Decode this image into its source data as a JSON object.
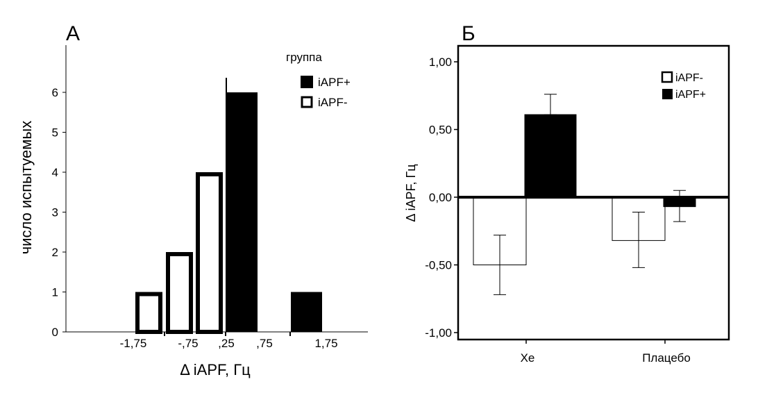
{
  "chart_data": [
    {
      "type": "bar",
      "panel_label": "А",
      "title": "",
      "xlabel": "Δ iAPF, Гц",
      "ylabel": "число испытуемых",
      "ylim": [
        0,
        6.5
      ],
      "yticks": [
        0,
        1,
        2,
        3,
        4,
        5,
        6
      ],
      "xticks": [
        "-1,75",
        "-,75",
        ",25",
        ",75",
        "1,75"
      ],
      "legend": {
        "title": "группа",
        "position": "top-right",
        "entries": [
          "iAPF+",
          "iAPF-"
        ]
      },
      "bins": [
        "-1,75",
        "-1,25",
        "-0,75",
        ",25",
        "1,75"
      ],
      "series": [
        {
          "name": "iAPF-",
          "color": "#ffffff",
          "values": [
            1,
            2,
            4,
            0,
            0
          ]
        },
        {
          "name": "iAPF+",
          "color": "#000000",
          "values": [
            0,
            0,
            0,
            6,
            1
          ]
        }
      ]
    },
    {
      "type": "bar",
      "panel_label": "Б",
      "title": "",
      "xlabel": "",
      "ylabel": "Δ iAPF, Гц",
      "ylim": [
        -1.0,
        1.0
      ],
      "yticks": [
        "-1,00",
        "-0,50",
        "0,00",
        "0,50",
        "1,00"
      ],
      "categories": [
        "Xe",
        "Плацебо"
      ],
      "legend": {
        "position": "top-right",
        "entries": [
          "iAPF-",
          "iAPF+"
        ]
      },
      "series": [
        {
          "name": "iAPF-",
          "color": "#ffffff",
          "values": [
            -0.5,
            -0.32
          ],
          "err_low": [
            -0.72,
            -0.52
          ],
          "err_high": [
            -0.28,
            -0.11
          ]
        },
        {
          "name": "iAPF+",
          "color": "#000000",
          "values": [
            0.61,
            -0.07
          ],
          "err_low": [
            0.61,
            -0.18
          ],
          "err_high": [
            0.76,
            0.05
          ]
        }
      ]
    }
  ]
}
